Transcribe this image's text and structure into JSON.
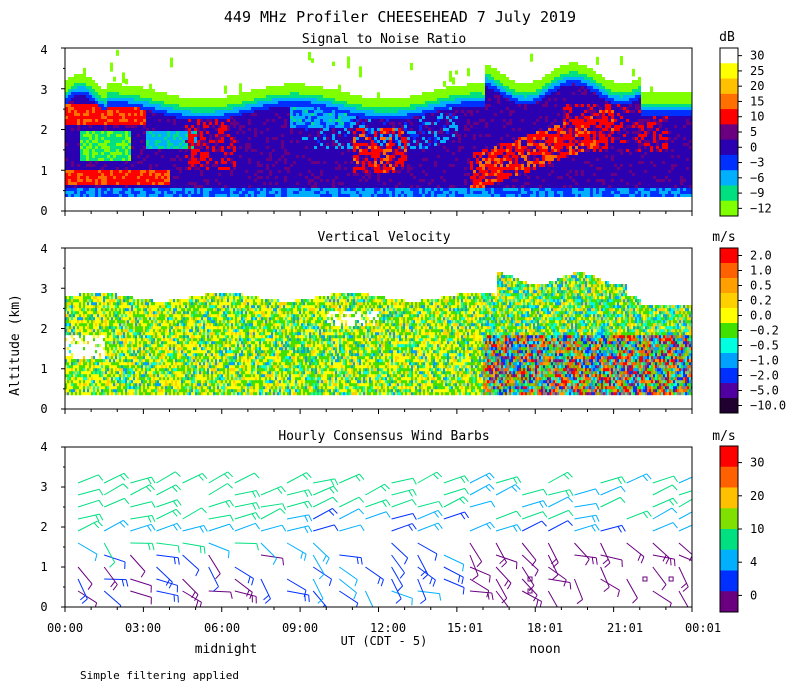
{
  "title": "449 MHz Profiler CHEESEHEAD  7 July 2019",
  "ylabel": "Altitude (km)",
  "xlabel": "UT  (CDT - 5)",
  "x_ticks": [
    "00:00",
    "03:00",
    "06:00",
    "09:00",
    "12:00",
    "15:01",
    "18:01",
    "21:01",
    "00:01"
  ],
  "x_notes": [
    "midnight",
    "noon"
  ],
  "footnote": "Simple filtering applied",
  "chart_data": [
    {
      "type": "heatmap",
      "title": "Signal to Noise Ratio",
      "unit": "dB",
      "x_range_hours": [
        0,
        24
      ],
      "ylim": [
        0,
        4
      ],
      "y_ticks": [
        "0",
        "1",
        "2",
        "3",
        "4"
      ],
      "colorbar": {
        "labels": [
          "30",
          "25",
          "20",
          "15",
          "10",
          "5",
          "0",
          "−3",
          "−6",
          "−9",
          "−12"
        ],
        "colors": [
          "#ffffff",
          "#ffff00",
          "#ffc000",
          "#ff7000",
          "#ff0000",
          "#6a0080",
          "#2a00b0",
          "#0030ff",
          "#00b0ff",
          "#00e080",
          "#80ff00"
        ]
      }
    },
    {
      "type": "heatmap",
      "title": "Vertical Velocity",
      "unit": "m/s",
      "x_range_hours": [
        0,
        24
      ],
      "ylim": [
        0,
        4
      ],
      "y_ticks": [
        "0",
        "1",
        "2",
        "3",
        "4"
      ],
      "colorbar": {
        "labels": [
          "2.0",
          "1.0",
          "0.5",
          "0.2",
          "0.0",
          "−0.2",
          "−0.5",
          "−1.0",
          "−2.0",
          "−5.0",
          "−10.0"
        ],
        "colors": [
          "#ff0000",
          "#ff6000",
          "#ffa000",
          "#ffd000",
          "#ffff00",
          "#40e000",
          "#00ffe0",
          "#00a0ff",
          "#0030ff",
          "#5000a0",
          "#200030"
        ]
      }
    },
    {
      "type": "wind-barbs",
      "title": "Hourly Consensus Wind Barbs",
      "unit": "m/s",
      "x_range_hours": [
        0,
        24
      ],
      "ylim": [
        0,
        4
      ],
      "y_ticks": [
        "0",
        "1",
        "2",
        "3",
        "4"
      ],
      "colorbar": {
        "labels": [
          "30",
          "20",
          "10",
          "4",
          "0"
        ],
        "colors": [
          "#ff0000",
          "#ff6000",
          "#ffc000",
          "#80e000",
          "#00e080",
          "#00b0ff",
          "#0030ff",
          "#6a0080"
        ]
      }
    }
  ]
}
